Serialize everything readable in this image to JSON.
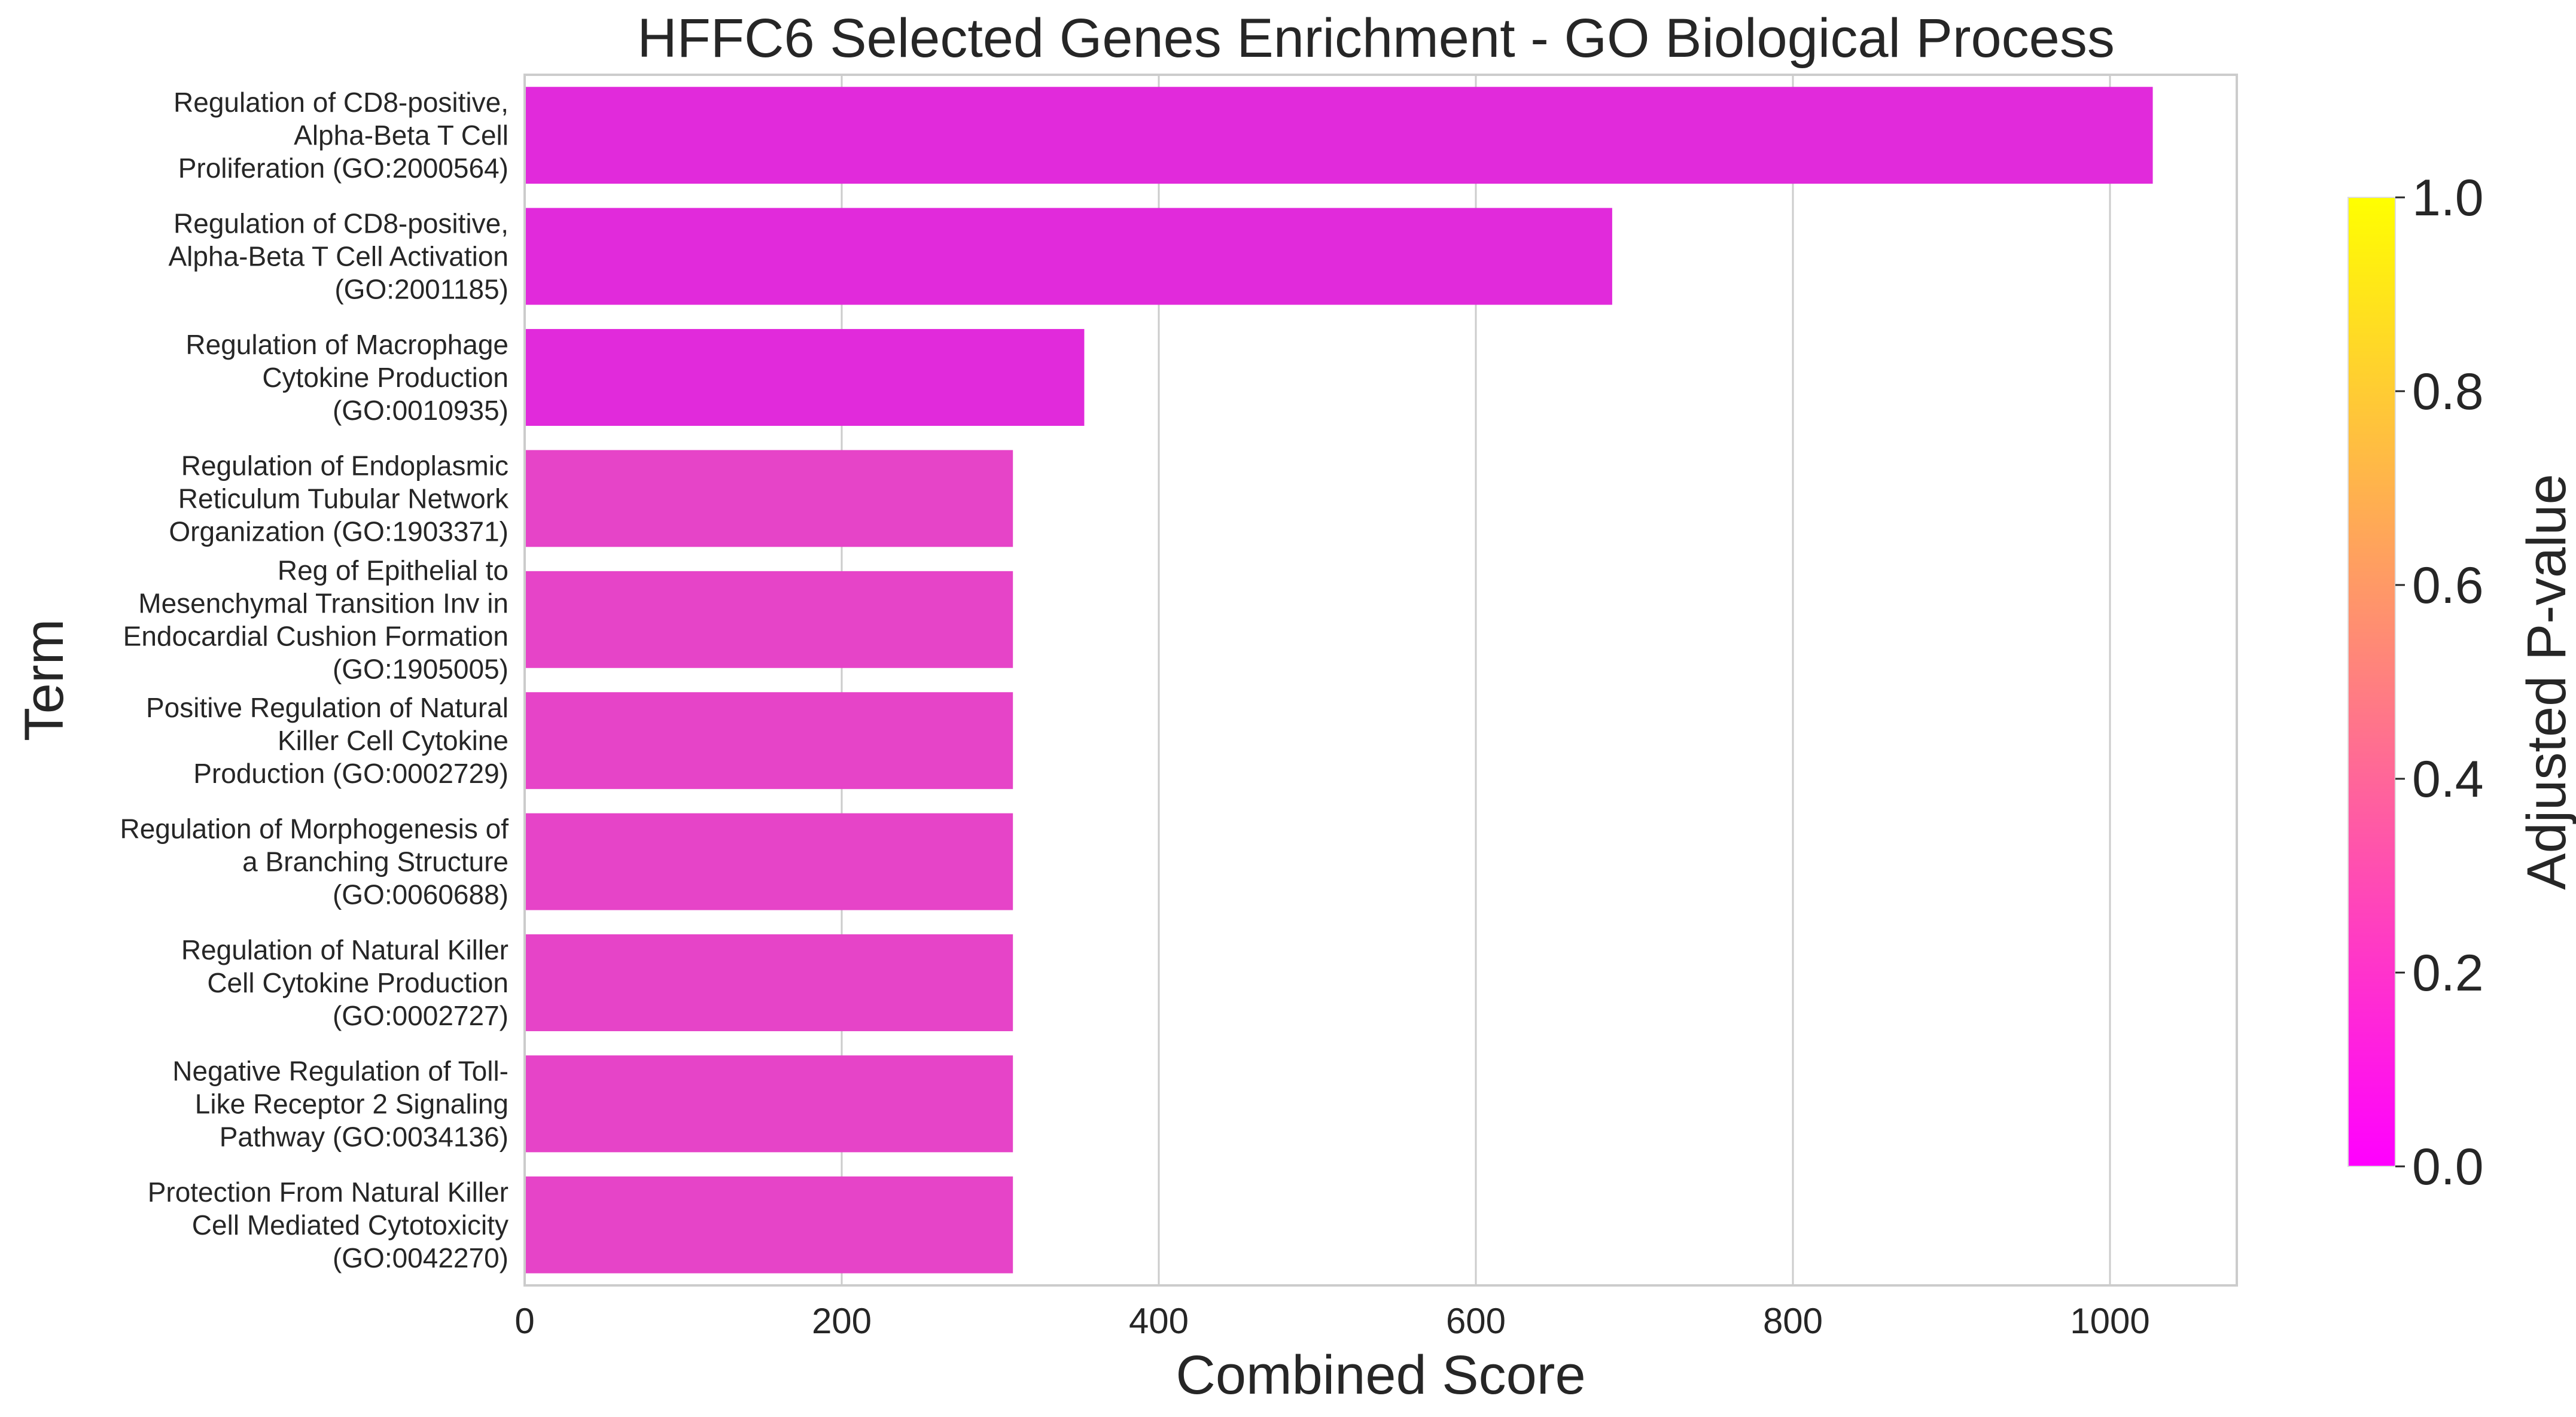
{
  "chart_data": {
    "type": "bar",
    "orientation": "horizontal",
    "title": "HFFC6 Selected Genes Enrichment - GO Biological Process",
    "xlabel": "Combined Score",
    "ylabel": "Term",
    "xlim": [
      0,
      1080
    ],
    "xticks": [
      0,
      200,
      400,
      600,
      800,
      1000
    ],
    "grid": "vertical",
    "categories": [
      [
        "Regulation of CD8-positive,",
        "Alpha-Beta T Cell",
        "Proliferation (GO:2000564)"
      ],
      [
        "Regulation of CD8-positive,",
        "Alpha-Beta T Cell Activation",
        "(GO:2001185)"
      ],
      [
        "Regulation of Macrophage",
        "Cytokine Production",
        "(GO:0010935)"
      ],
      [
        "Regulation of Endoplasmic",
        "Reticulum Tubular Network",
        "Organization (GO:1903371)"
      ],
      [
        "Reg of Epithelial to",
        "Mesenchymal Transition Inv in",
        "Endocardial Cushion Formation",
        "(GO:1905005)"
      ],
      [
        "Positive Regulation of Natural",
        "Killer Cell Cytokine",
        "Production (GO:0002729)"
      ],
      [
        "Regulation of Morphogenesis of",
        "a Branching Structure",
        "(GO:0060688)"
      ],
      [
        "Regulation of Natural Killer",
        "Cell Cytokine Production",
        "(GO:0002727)"
      ],
      [
        "Negative Regulation of Toll-",
        "Like Receptor 2 Signaling",
        "Pathway (GO:0034136)"
      ],
      [
        "Protection From Natural Killer",
        "Cell Mediated Cytotoxicity",
        "(GO:0042270)"
      ]
    ],
    "values": [
      1027,
      686,
      353,
      308,
      308,
      308,
      308,
      308,
      308,
      308
    ],
    "bar_colors": [
      "#e12adb",
      "#e12adb",
      "#e12adb",
      "#e644c8",
      "#e644c8",
      "#e644c8",
      "#e644c8",
      "#e644c8",
      "#e644c8",
      "#e644c8"
    ],
    "colorbar": {
      "label": "Adjusted P-value",
      "range": [
        0.0,
        1.0
      ],
      "ticks": [
        "0.0",
        "0.2",
        "0.4",
        "0.6",
        "0.8",
        "1.0"
      ],
      "colormap": "spring",
      "color_low": "#ff00ff",
      "color_high": "#ffff00"
    }
  }
}
